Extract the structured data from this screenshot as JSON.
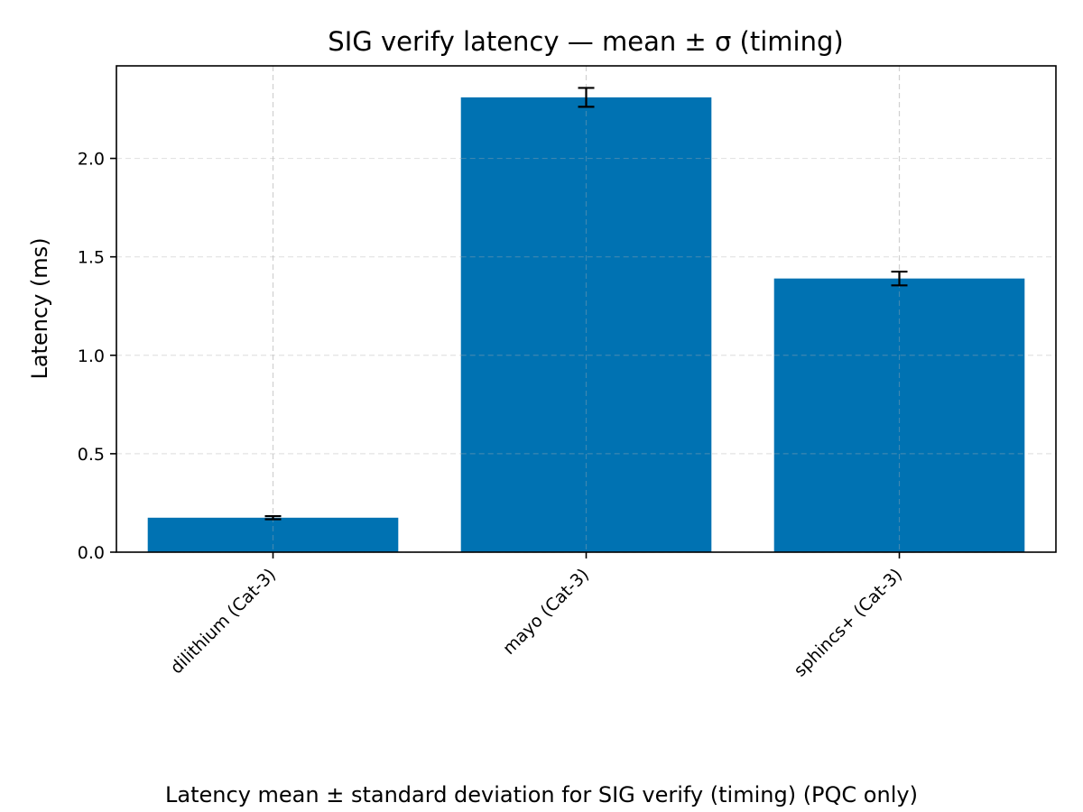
{
  "chart_data": {
    "type": "bar",
    "title": "SIG verify latency — mean ± σ (timing)",
    "xlabel": "",
    "ylabel": "Latency (ms)",
    "categories": [
      "dilithium (Cat-3)",
      "mayo (Cat-3)",
      "sphincs+ (Cat-3)"
    ],
    "values": [
      0.175,
      2.31,
      1.39
    ],
    "errors": [
      0.008,
      0.048,
      0.035
    ],
    "ylim": [
      0,
      2.47
    ],
    "yticks": [
      0.0,
      0.5,
      1.0,
      1.5,
      2.0
    ],
    "ytick_labels": [
      "0.0",
      "0.5",
      "1.0",
      "1.5",
      "2.0"
    ],
    "grid": true,
    "bar_color": "#0072B2",
    "caption": "Latency mean ± standard deviation for SIG verify (timing) (PQC only)"
  }
}
